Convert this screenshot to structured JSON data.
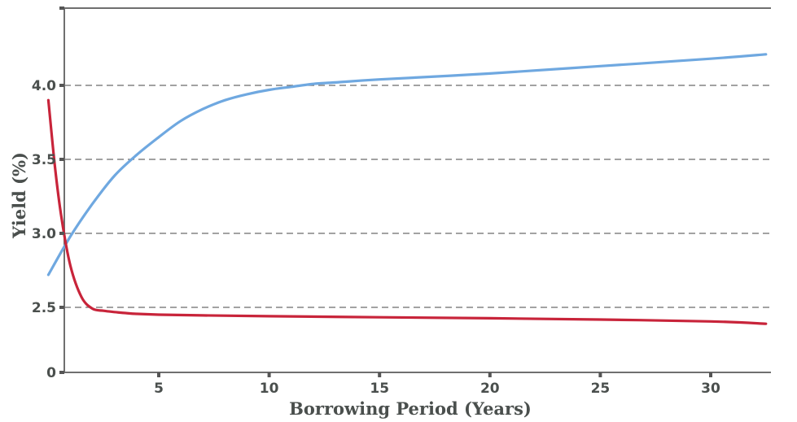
{
  "chart_data": {
    "type": "line",
    "xlabel": "Borrowing Period (Years)",
    "ylabel": "Yield (%)",
    "xlim": [
      0,
      32.5
    ],
    "x_ticks": [
      5,
      10,
      15,
      20,
      25,
      30
    ],
    "x_tick_labels": [
      "5",
      "10",
      "15",
      "20",
      "25",
      "30"
    ],
    "y_ticks": [
      0,
      2.5,
      3.0,
      3.5,
      4.0
    ],
    "y_tick_labels": [
      "0",
      "2.5",
      "3.0",
      "3.5",
      "4.0"
    ],
    "y_axis_note": "broken axis between 0 and 2.5",
    "grid": "horizontal dashed",
    "legend": "none",
    "series": [
      {
        "color": "#6fa8e0",
        "x": [
          0,
          1,
          2,
          3,
          4,
          5,
          6,
          7,
          8,
          9,
          10,
          11,
          12,
          13,
          15,
          20,
          25,
          30,
          32.5
        ],
        "y": [
          2.72,
          2.98,
          3.2,
          3.39,
          3.53,
          3.65,
          3.76,
          3.84,
          3.9,
          3.94,
          3.97,
          3.99,
          4.01,
          4.02,
          4.04,
          4.08,
          4.13,
          4.18,
          4.21
        ]
      },
      {
        "color": "#c8243a",
        "x": [
          0,
          0.3,
          0.6,
          1,
          1.5,
          2,
          2.5,
          3,
          3.5,
          4,
          5,
          7,
          10,
          15,
          20,
          25,
          30,
          32.5
        ],
        "y": [
          3.9,
          3.45,
          3.1,
          2.78,
          2.57,
          2.45,
          2.37,
          2.32,
          2.28,
          2.25,
          2.22,
          2.19,
          2.16,
          2.12,
          2.08,
          2.03,
          1.96,
          1.87
        ]
      }
    ]
  }
}
